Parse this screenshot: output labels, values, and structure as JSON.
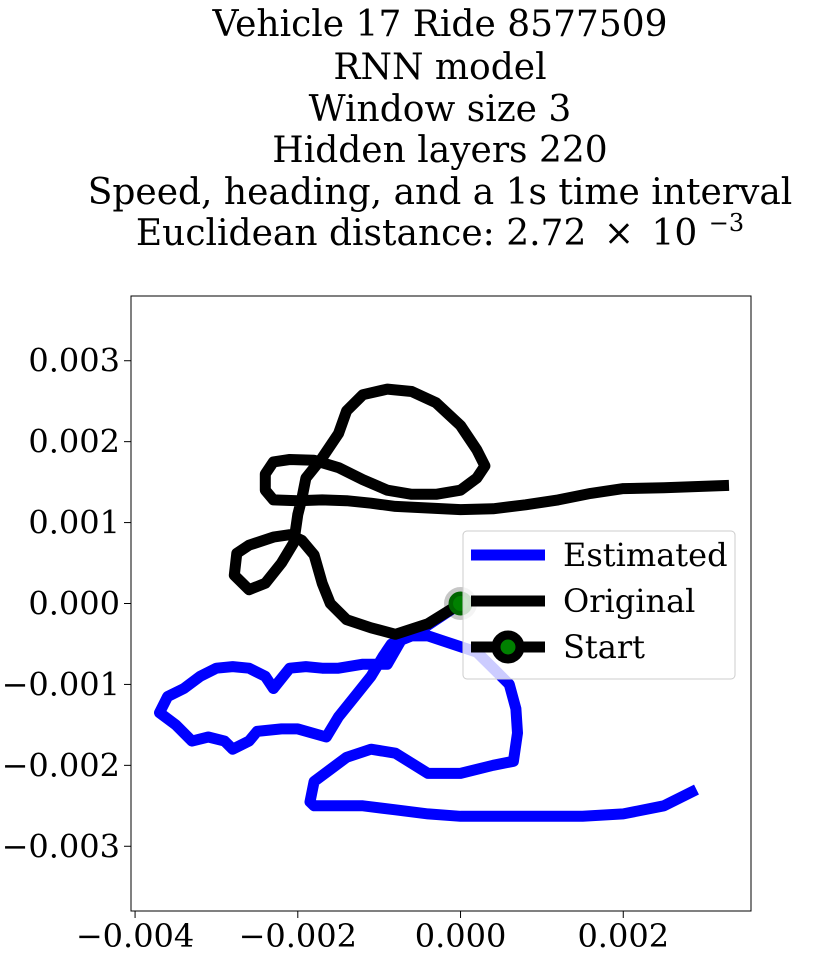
{
  "chart_data": {
    "type": "line",
    "title_lines": [
      "Vehicle 17 Ride 8577509",
      "RNN model",
      "Window size 3",
      "Hidden layers 220",
      "Speed, heading, and a 1s time interval"
    ],
    "title_distance_prefix": "Euclidean distance: 2.72",
    "title_distance_times": "×",
    "title_distance_base": "10",
    "title_distance_exp": "−3",
    "xlim": [
      -0.00405,
      0.00357
    ],
    "ylim": [
      -0.0038,
      0.0038
    ],
    "x_ticks": [
      {
        "value": -0.004,
        "label": "−0.004"
      },
      {
        "value": -0.002,
        "label": "−0.002"
      },
      {
        "value": 0.0,
        "label": "0.000"
      },
      {
        "value": 0.002,
        "label": "0.002"
      }
    ],
    "y_ticks": [
      {
        "value": 0.003,
        "label": "0.003"
      },
      {
        "value": 0.002,
        "label": "0.002"
      },
      {
        "value": 0.001,
        "label": "0.001"
      },
      {
        "value": 0.0,
        "label": "0.000"
      },
      {
        "value": -0.001,
        "label": "−0.001"
      },
      {
        "value": -0.002,
        "label": "−0.002"
      },
      {
        "value": -0.003,
        "label": "−0.003"
      }
    ],
    "grid": false,
    "legend_placement": "center-right",
    "series": [
      {
        "name": "Estimated",
        "color": "#0000ff",
        "points": [
          [
            0.0,
            0.0
          ],
          [
            -0.0006,
            -0.0004
          ],
          [
            -0.00085,
            -0.0005
          ],
          [
            -0.00095,
            -0.00065
          ],
          [
            -0.0011,
            -0.0009
          ],
          [
            -0.0013,
            -0.00115
          ],
          [
            -0.0015,
            -0.0014
          ],
          [
            -0.00165,
            -0.00165
          ],
          [
            -0.002,
            -0.00155
          ],
          [
            -0.0022,
            -0.00155
          ],
          [
            -0.0025,
            -0.00158
          ],
          [
            -0.0026,
            -0.0017
          ],
          [
            -0.0028,
            -0.0018
          ],
          [
            -0.0029,
            -0.0017
          ],
          [
            -0.0031,
            -0.00165
          ],
          [
            -0.0033,
            -0.0017
          ],
          [
            -0.0035,
            -0.0015
          ],
          [
            -0.0037,
            -0.00135
          ],
          [
            -0.0036,
            -0.00115
          ],
          [
            -0.0034,
            -0.00105
          ],
          [
            -0.0032,
            -0.0009
          ],
          [
            -0.003,
            -0.0008
          ],
          [
            -0.0028,
            -0.00078
          ],
          [
            -0.0026,
            -0.0008
          ],
          [
            -0.0024,
            -0.0009
          ],
          [
            -0.0023,
            -0.00105
          ],
          [
            -0.0021,
            -0.0008
          ],
          [
            -0.0019,
            -0.00078
          ],
          [
            -0.0017,
            -0.0008
          ],
          [
            -0.0015,
            -0.0008
          ],
          [
            -0.0012,
            -0.00075
          ],
          [
            -0.0009,
            -0.00075
          ],
          [
            -0.0007,
            -0.0004
          ],
          [
            -0.0004,
            -0.0004
          ],
          [
            -0.0001,
            -0.0005
          ],
          [
            0.0002,
            -0.0006
          ],
          [
            0.0004,
            -0.0008
          ],
          [
            0.0006,
            -0.001
          ],
          [
            0.00068,
            -0.0013
          ],
          [
            0.0007,
            -0.0016
          ],
          [
            0.00065,
            -0.00195
          ],
          [
            0.0004,
            -0.002
          ],
          [
            0.0,
            -0.0021
          ],
          [
            -0.0004,
            -0.0021
          ],
          [
            -0.0008,
            -0.00185
          ],
          [
            -0.0011,
            -0.0018
          ],
          [
            -0.0014,
            -0.0019
          ],
          [
            -0.0016,
            -0.00205
          ],
          [
            -0.0018,
            -0.0022
          ],
          [
            -0.00185,
            -0.00245
          ],
          [
            -0.0018,
            -0.0025
          ],
          [
            -0.0015,
            -0.0025
          ],
          [
            -0.0012,
            -0.0025
          ],
          [
            -0.0008,
            -0.00255
          ],
          [
            -0.0004,
            -0.0026
          ],
          [
            0.0,
            -0.00263
          ],
          [
            0.0005,
            -0.00263
          ],
          [
            0.001,
            -0.00263
          ],
          [
            0.0015,
            -0.00263
          ],
          [
            0.002,
            -0.0026
          ],
          [
            0.0025,
            -0.0025
          ],
          [
            0.0029,
            -0.0023
          ]
        ]
      },
      {
        "name": "Original",
        "color": "#000000",
        "points": [
          [
            0.0,
            0.0
          ],
          [
            -0.0004,
            -0.00025
          ],
          [
            -0.0008,
            -0.00038
          ],
          [
            -0.0011,
            -0.0003
          ],
          [
            -0.0014,
            -0.0002
          ],
          [
            -0.0016,
            0.0
          ],
          [
            -0.0017,
            0.00025
          ],
          [
            -0.0018,
            0.0006
          ],
          [
            -0.00195,
            0.00078
          ],
          [
            -0.0021,
            0.00085
          ],
          [
            -0.0023,
            0.00082
          ],
          [
            -0.0026,
            0.00072
          ],
          [
            -0.00275,
            0.00062
          ],
          [
            -0.00278,
            0.00035
          ],
          [
            -0.0026,
            0.00017
          ],
          [
            -0.0024,
            0.00025
          ],
          [
            -0.0022,
            0.0005
          ],
          [
            -0.00205,
            0.00075
          ],
          [
            -0.002,
            0.0011
          ],
          [
            -0.00195,
            0.0013
          ],
          [
            -0.0019,
            0.00155
          ],
          [
            -0.0017,
            0.0018
          ],
          [
            -0.0015,
            0.0021
          ],
          [
            -0.0014,
            0.00238
          ],
          [
            -0.0012,
            0.00258
          ],
          [
            -0.0009,
            0.00265
          ],
          [
            -0.0006,
            0.00262
          ],
          [
            -0.0003,
            0.00248
          ],
          [
            0.0,
            0.0022
          ],
          [
            0.0002,
            0.0019
          ],
          [
            0.0003,
            0.0017
          ],
          [
            0.0002,
            0.00155
          ],
          [
            0.0,
            0.0014
          ],
          [
            -0.0003,
            0.00135
          ],
          [
            -0.0006,
            0.00135
          ],
          [
            -0.0009,
            0.0014
          ],
          [
            -0.0012,
            0.00153
          ],
          [
            -0.0015,
            0.00168
          ],
          [
            -0.0018,
            0.00177
          ],
          [
            -0.0021,
            0.00178
          ],
          [
            -0.0023,
            0.00175
          ],
          [
            -0.0024,
            0.0016
          ],
          [
            -0.0024,
            0.0014
          ],
          [
            -0.0023,
            0.00128
          ],
          [
            -0.002,
            0.00127
          ],
          [
            -0.0017,
            0.00128
          ],
          [
            -0.0014,
            0.00127
          ],
          [
            -0.0011,
            0.00124
          ],
          [
            -0.0008,
            0.0012
          ],
          [
            -0.0004,
            0.00118
          ],
          [
            0.0,
            0.00116
          ],
          [
            0.0004,
            0.00117
          ],
          [
            0.0008,
            0.00122
          ],
          [
            0.0012,
            0.00128
          ],
          [
            0.0016,
            0.00136
          ],
          [
            0.002,
            0.00142
          ],
          [
            0.0025,
            0.00143
          ],
          [
            0.0033,
            0.00146
          ]
        ]
      },
      {
        "name": "Start",
        "color": "#000000",
        "marker_color": "#008000",
        "points": [
          [
            0.0,
            0.0
          ]
        ]
      }
    ]
  }
}
